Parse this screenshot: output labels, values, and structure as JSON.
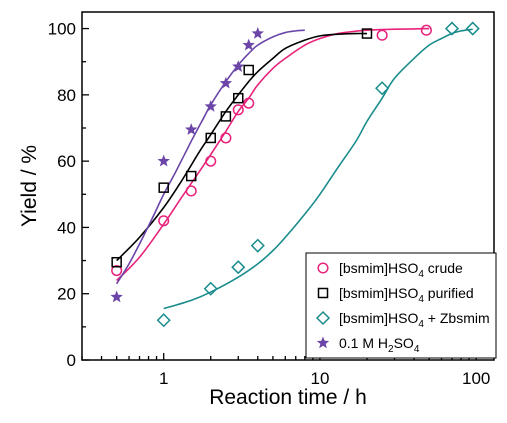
{
  "chart_data": {
    "type": "scatter",
    "xscale": "log",
    "xlim": [
      0.3,
      130
    ],
    "ylim": [
      0,
      105
    ],
    "xlabel": "Reaction time / h",
    "ylabel": "Yield / %",
    "x_ticks": [
      "1",
      "10",
      "100"
    ],
    "y_ticks": [
      "0",
      "20",
      "40",
      "60",
      "80",
      "100"
    ],
    "grid": false,
    "legend_position": "bottom-right",
    "series": [
      {
        "name": "[bsmim]HSO4 crude",
        "legend": {
          "pre": "[bsmim]HSO",
          "sub": "4",
          "post": " crude"
        },
        "marker": "circle",
        "color": "#e8237b",
        "x": [
          0.5,
          1,
          1.5,
          2,
          2.5,
          3,
          3.5,
          25,
          48
        ],
        "y": [
          27,
          42,
          51,
          60,
          67,
          75.5,
          77.5,
          98,
          99.5
        ],
        "fit_x": [
          0.5,
          0.7,
          1,
          1.3,
          1.7,
          2,
          2.5,
          3,
          3.5,
          4,
          5,
          6,
          8,
          10,
          13,
          17,
          20,
          25,
          30,
          40,
          50
        ],
        "fit_y": [
          24,
          31,
          41,
          49,
          57,
          62,
          69,
          75,
          79,
          83,
          88,
          91,
          95,
          97,
          98.5,
          99.2,
          99.5,
          99.7,
          99.8,
          99.9,
          100
        ]
      },
      {
        "name": "[bsmim]HSO4 purified",
        "legend": {
          "pre": "[bsmim]HSO",
          "sub": "4",
          "post": " purified"
        },
        "marker": "square",
        "color": "#000000",
        "x": [
          0.5,
          1,
          1.5,
          2,
          2.5,
          3,
          3.5,
          20
        ],
        "y": [
          29.5,
          52,
          55.5,
          67,
          73.5,
          79,
          87.5,
          98.5
        ],
        "fit_x": [
          0.5,
          0.7,
          1,
          1.3,
          1.7,
          2,
          2.5,
          3,
          3.5,
          4,
          5,
          6,
          8,
          10,
          13,
          17,
          20
        ],
        "fit_y": [
          30,
          37,
          46,
          54,
          63,
          68,
          75,
          80,
          84,
          87,
          91,
          94,
          96.5,
          97.8,
          98.3,
          98.5,
          98.5
        ]
      },
      {
        "name": "[bsmim]HSO4 + Zbsmim",
        "legend": {
          "pre": "[bsmim]HSO",
          "sub": "4",
          "post": " + Zbsmim"
        },
        "marker": "diamond",
        "color": "#1a8c8c",
        "x": [
          1,
          2,
          3,
          4,
          25,
          70,
          95
        ],
        "y": [
          12,
          21.5,
          28,
          34.5,
          82,
          100,
          100
        ],
        "fit_x": [
          1,
          1.5,
          2,
          3,
          4,
          5,
          6,
          8,
          10,
          13,
          17,
          20,
          25,
          30,
          40,
          50,
          60,
          70,
          80,
          95
        ],
        "fit_y": [
          15.5,
          18,
          20.5,
          25,
          29,
          33,
          37,
          44,
          50,
          58,
          66,
          72,
          79,
          85,
          91,
          95,
          97,
          98.5,
          99.3,
          99.8
        ]
      },
      {
        "name": "0.1 M H2SO4",
        "legend": {
          "pre": "0.1 M H",
          "sub": "2",
          "post": "SO",
          "sub2": "4"
        },
        "marker": "star",
        "color": "#6b46a8",
        "x": [
          0.5,
          1,
          1.5,
          2,
          2.5,
          3,
          3.5,
          4
        ],
        "y": [
          19,
          60,
          69.5,
          76.5,
          83.5,
          88.5,
          95,
          98.5
        ],
        "fit_x": [
          0.5,
          0.6,
          0.7,
          0.85,
          1,
          1.2,
          1.5,
          1.8,
          2,
          2.5,
          3,
          3.5,
          4,
          5,
          6,
          7,
          8
        ],
        "fit_y": [
          23,
          29,
          35,
          43,
          50,
          57,
          66,
          73,
          77,
          84,
          89,
          92.5,
          95,
          97.5,
          98.8,
          99.3,
          99.5
        ]
      }
    ]
  }
}
